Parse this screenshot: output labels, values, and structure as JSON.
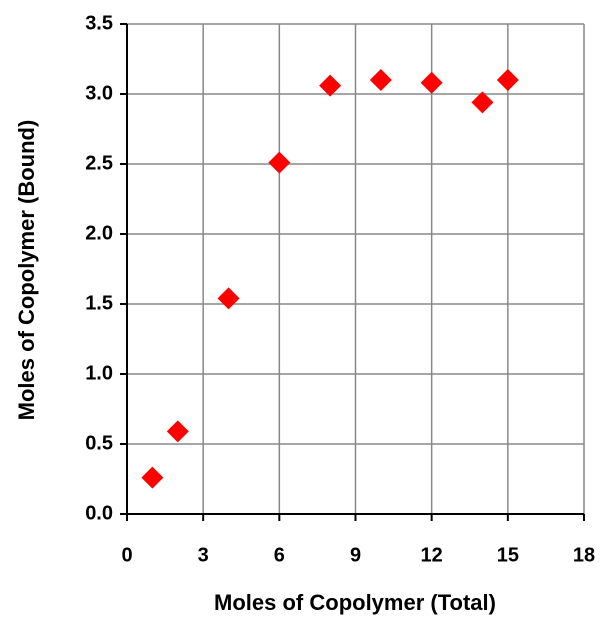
{
  "chart_data": {
    "type": "scatter",
    "xlabel": "Moles of Copolymer (Total)",
    "ylabel": "Moles of Copolymer (Bound)",
    "x": [
      1,
      2,
      4,
      6,
      8,
      10,
      12,
      14,
      15
    ],
    "values": [
      0.26,
      0.59,
      1.54,
      2.51,
      3.06,
      3.1,
      3.08,
      2.94,
      3.1
    ],
    "color": "#ff0000",
    "marker": "diamond",
    "xlim": [
      0,
      18
    ],
    "xticks": [
      0,
      3,
      6,
      9,
      12,
      15,
      18
    ],
    "ylim": [
      0,
      3.5
    ],
    "yticks": [
      {
        "value": 0,
        "label": "0.0"
      },
      0.5,
      {
        "value": 1,
        "label": "1.0"
      },
      1.5,
      {
        "value": 2,
        "label": "2.0"
      },
      2.5,
      {
        "value": 3,
        "label": "3.0"
      },
      3.5
    ],
    "grid": true
  }
}
